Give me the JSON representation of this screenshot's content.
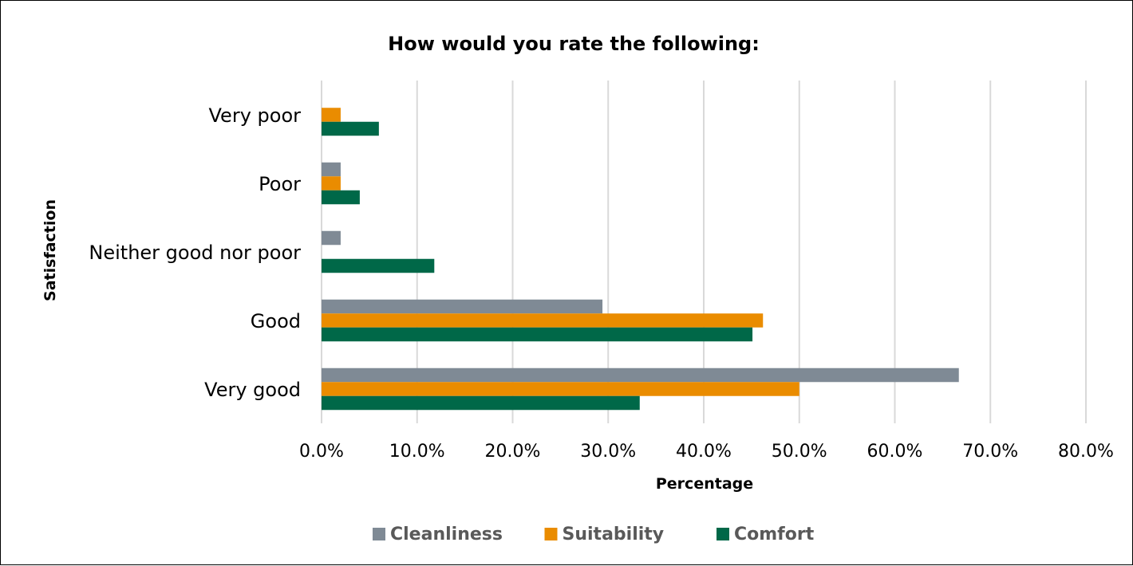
{
  "chart_data": {
    "type": "bar",
    "orientation": "horizontal",
    "title": "How would you rate the following:",
    "xlabel": "Percentage",
    "ylabel": "Satisfaction",
    "categories": [
      "Very poor",
      "Poor",
      "Neither good nor poor",
      "Good",
      "Very good"
    ],
    "series": [
      {
        "name": "Cleanliness",
        "color": "#7f8a95",
        "values": [
          0.0,
          2.0,
          2.0,
          29.4,
          66.7
        ]
      },
      {
        "name": "Suitability",
        "color": "#ea8c00",
        "values": [
          2.0,
          2.0,
          0.0,
          46.2,
          50.0
        ]
      },
      {
        "name": "Comfort",
        "color": "#006848",
        "values": [
          6.0,
          4.0,
          11.8,
          45.1,
          33.3
        ]
      }
    ],
    "xlim": [
      0,
      80
    ],
    "xticks": [
      "0.0%",
      "10.0%",
      "20.0%",
      "30.0%",
      "40.0%",
      "50.0%",
      "60.0%",
      "70.0%",
      "80.0%"
    ],
    "grid": true,
    "legend_position": "bottom"
  }
}
